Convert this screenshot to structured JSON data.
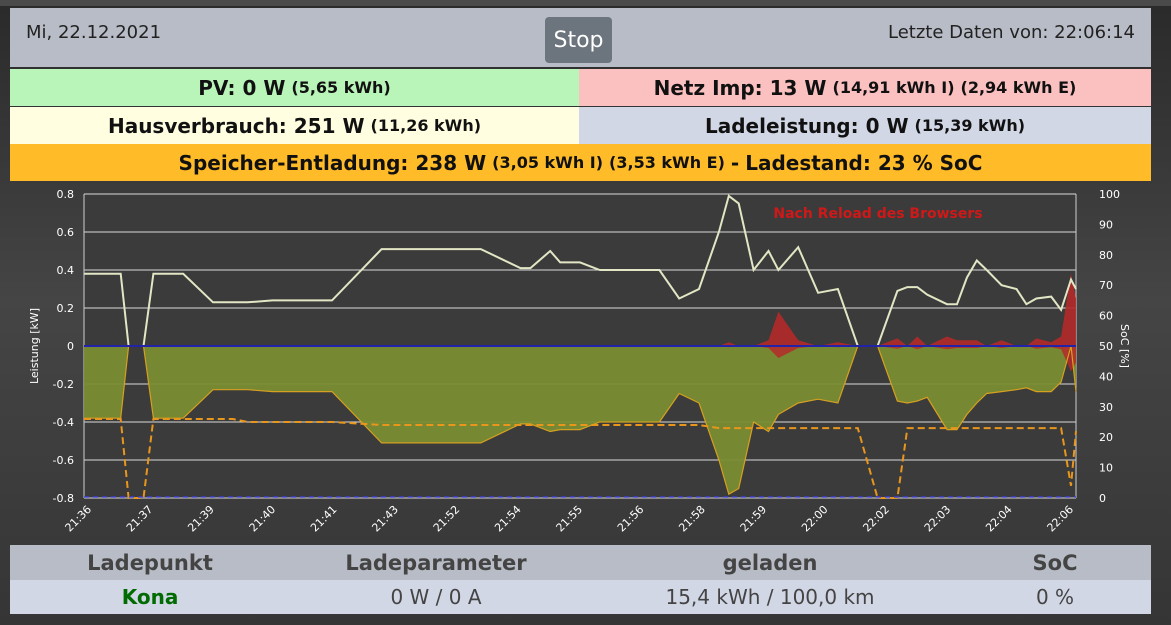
{
  "header": {
    "date": "Mi, 22.12.2021",
    "stop_label": "Stop",
    "last_data": "Letzte Daten von: 22:06:14"
  },
  "summary": {
    "pv": {
      "main": "PV: 0 W",
      "detail": "(5,65 kWh)"
    },
    "netz": {
      "main": "Netz Imp: 13 W",
      "detail1": "(14,91 kWh I)",
      "detail2": "(2,94 kWh E)"
    },
    "haus": {
      "main": "Hausverbrauch: 251 W",
      "detail": "(11,26 kWh)"
    },
    "lade": {
      "main": "Ladeleistung: 0 W",
      "detail": "(15,39 kWh)"
    },
    "speicher": {
      "main": "Speicher-Entladung: 238 W",
      "detail1": "(3,05 kWh I)",
      "detail2": "(3,53 kWh E)",
      "separator": "-",
      "soc": "Ladestand: 23 % SoC"
    }
  },
  "colors": {
    "grid_import": "#b52a2a",
    "battery_area": "#7a8c32",
    "battery_line": "#d6a020",
    "house_line": "#e3e6c4",
    "soc_line": "#e8961c",
    "zero_line": "#2222aa",
    "ev_soc_line": "#4040d0",
    "note": "#d01818"
  },
  "chart_data": {
    "type": "line",
    "note": "Nach Reload des Browsers",
    "ylabel": "Leistung [kW]",
    "y2label": "SoC [%]",
    "ylim": [
      -0.8,
      0.8
    ],
    "y2lim": [
      0,
      100
    ],
    "y_ticks": [
      "0.8",
      "0.6",
      "0.4",
      "0.2",
      "0",
      "-0.2",
      "-0.4",
      "-0.6",
      "-0.8"
    ],
    "y2_ticks": [
      "100",
      "90",
      "80",
      "70",
      "60",
      "50",
      "40",
      "30",
      "20",
      "10",
      "0"
    ],
    "x_ticks": [
      "21:36",
      "21:37",
      "21:39",
      "21:40",
      "21:41",
      "21:43",
      "21:52",
      "21:54",
      "21:55",
      "21:56",
      "21:58",
      "21:59",
      "22:00",
      "22:02",
      "22:03",
      "22:04",
      "22:06"
    ],
    "x": [
      0,
      0.02,
      0.037,
      0.045,
      0.052,
      0.06,
      0.07,
      0.08,
      0.1,
      0.13,
      0.135,
      0.15,
      0.165,
      0.19,
      0.25,
      0.3,
      0.4,
      0.44,
      0.45,
      0.47,
      0.48,
      0.5,
      0.52,
      0.58,
      0.6,
      0.62,
      0.64,
      0.65,
      0.66,
      0.675,
      0.69,
      0.7,
      0.72,
      0.74,
      0.76,
      0.78,
      0.8,
      0.82,
      0.83,
      0.84,
      0.85,
      0.87,
      0.88,
      0.89,
      0.9,
      0.91,
      0.925,
      0.94,
      0.95,
      0.96,
      0.975,
      0.985,
      0.995,
      1.0
    ],
    "series": [
      {
        "key": "haus",
        "values": [
          0.38,
          0.38,
          0.38,
          0.0,
          0.0,
          0.0,
          0.38,
          0.38,
          0.38,
          0.23,
          0.23,
          0.23,
          0.23,
          0.24,
          0.24,
          0.51,
          0.51,
          0.41,
          0.41,
          0.5,
          0.44,
          0.44,
          0.4,
          0.4,
          0.25,
          0.3,
          0.6,
          0.79,
          0.75,
          0.4,
          0.5,
          0.4,
          0.52,
          0.28,
          0.3,
          0.0,
          0.0,
          0.29,
          0.31,
          0.31,
          0.27,
          0.22,
          0.22,
          0.36,
          0.45,
          0.4,
          0.32,
          0.3,
          0.22,
          0.25,
          0.26,
          0.19,
          0.35,
          0.3
        ]
      },
      {
        "key": "speicher",
        "values": [
          -0.38,
          -0.38,
          -0.38,
          0.0,
          0.0,
          0.0,
          -0.38,
          -0.38,
          -0.38,
          -0.23,
          -0.23,
          -0.23,
          -0.23,
          -0.24,
          -0.24,
          -0.51,
          -0.51,
          -0.41,
          -0.41,
          -0.45,
          -0.44,
          -0.44,
          -0.4,
          -0.4,
          -0.25,
          -0.3,
          -0.6,
          -0.78,
          -0.75,
          -0.4,
          -0.45,
          -0.36,
          -0.3,
          -0.28,
          -0.3,
          0.0,
          0.0,
          -0.29,
          -0.3,
          -0.29,
          -0.27,
          -0.44,
          -0.44,
          -0.36,
          -0.3,
          -0.25,
          -0.24,
          -0.23,
          -0.22,
          -0.24,
          -0.24,
          -0.19,
          0.0,
          -0.24
        ]
      },
      {
        "key": "netz_import",
        "values": [
          0,
          0,
          0,
          0,
          0,
          0,
          0,
          0,
          0,
          0,
          0,
          0,
          0,
          0,
          0,
          0,
          0,
          0,
          0,
          0,
          0,
          0,
          0,
          0,
          0,
          0,
          0,
          0.02,
          0,
          0,
          0.03,
          0.18,
          0.03,
          0,
          0.02,
          0,
          0,
          0.04,
          0,
          0.05,
          0,
          0.05,
          0.03,
          0.03,
          0.03,
          0,
          0.03,
          0,
          0,
          0.04,
          0.02,
          0.05,
          0.38,
          0.25
        ]
      },
      {
        "key": "soc",
        "values": [
          26,
          26,
          26,
          0,
          0,
          0,
          26,
          26,
          26,
          26,
          26,
          26,
          25,
          25,
          25,
          24,
          24,
          24,
          24,
          24,
          24,
          24,
          24,
          24,
          24,
          24,
          23,
          23,
          23,
          23,
          23,
          23,
          23,
          23,
          23,
          23,
          0,
          0,
          23,
          23,
          23,
          23,
          23,
          23,
          23,
          23,
          23,
          23,
          23,
          23,
          23,
          23,
          4,
          22
        ]
      }
    ],
    "grid": true
  },
  "ladepunkt": {
    "headers": [
      "Ladepunkt",
      "Ladeparameter",
      "geladen",
      "SoC"
    ],
    "rows": [
      {
        "name": "Kona",
        "params": "0 W / 0 A",
        "charged": "15,4 kWh / 100,0 km",
        "soc": "0 %"
      }
    ]
  }
}
